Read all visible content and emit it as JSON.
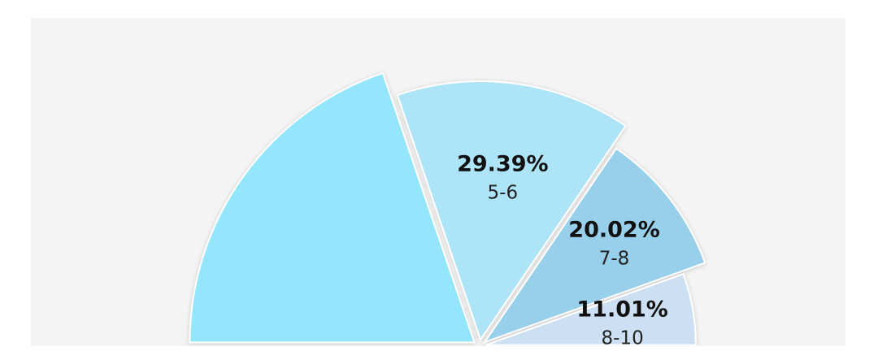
{
  "chart_data": {
    "type": "pie",
    "layout": "half-pie, exploded slices",
    "slices": [
      {
        "label": "",
        "value": 39.58,
        "value_label": "",
        "color": "#93e6fb"
      },
      {
        "label": "5-6",
        "value": 29.39,
        "value_label": "29.39%",
        "color": "#ade4f8"
      },
      {
        "label": "7-8",
        "value": 20.02,
        "value_label": "20.02%",
        "color": "#98d0ec"
      },
      {
        "label": "8-10",
        "value": 11.01,
        "value_label": "11.01%",
        "color": "#cde0f3"
      }
    ],
    "colors": {
      "background": "#f4f4f4",
      "edge": "#ffffff"
    }
  }
}
